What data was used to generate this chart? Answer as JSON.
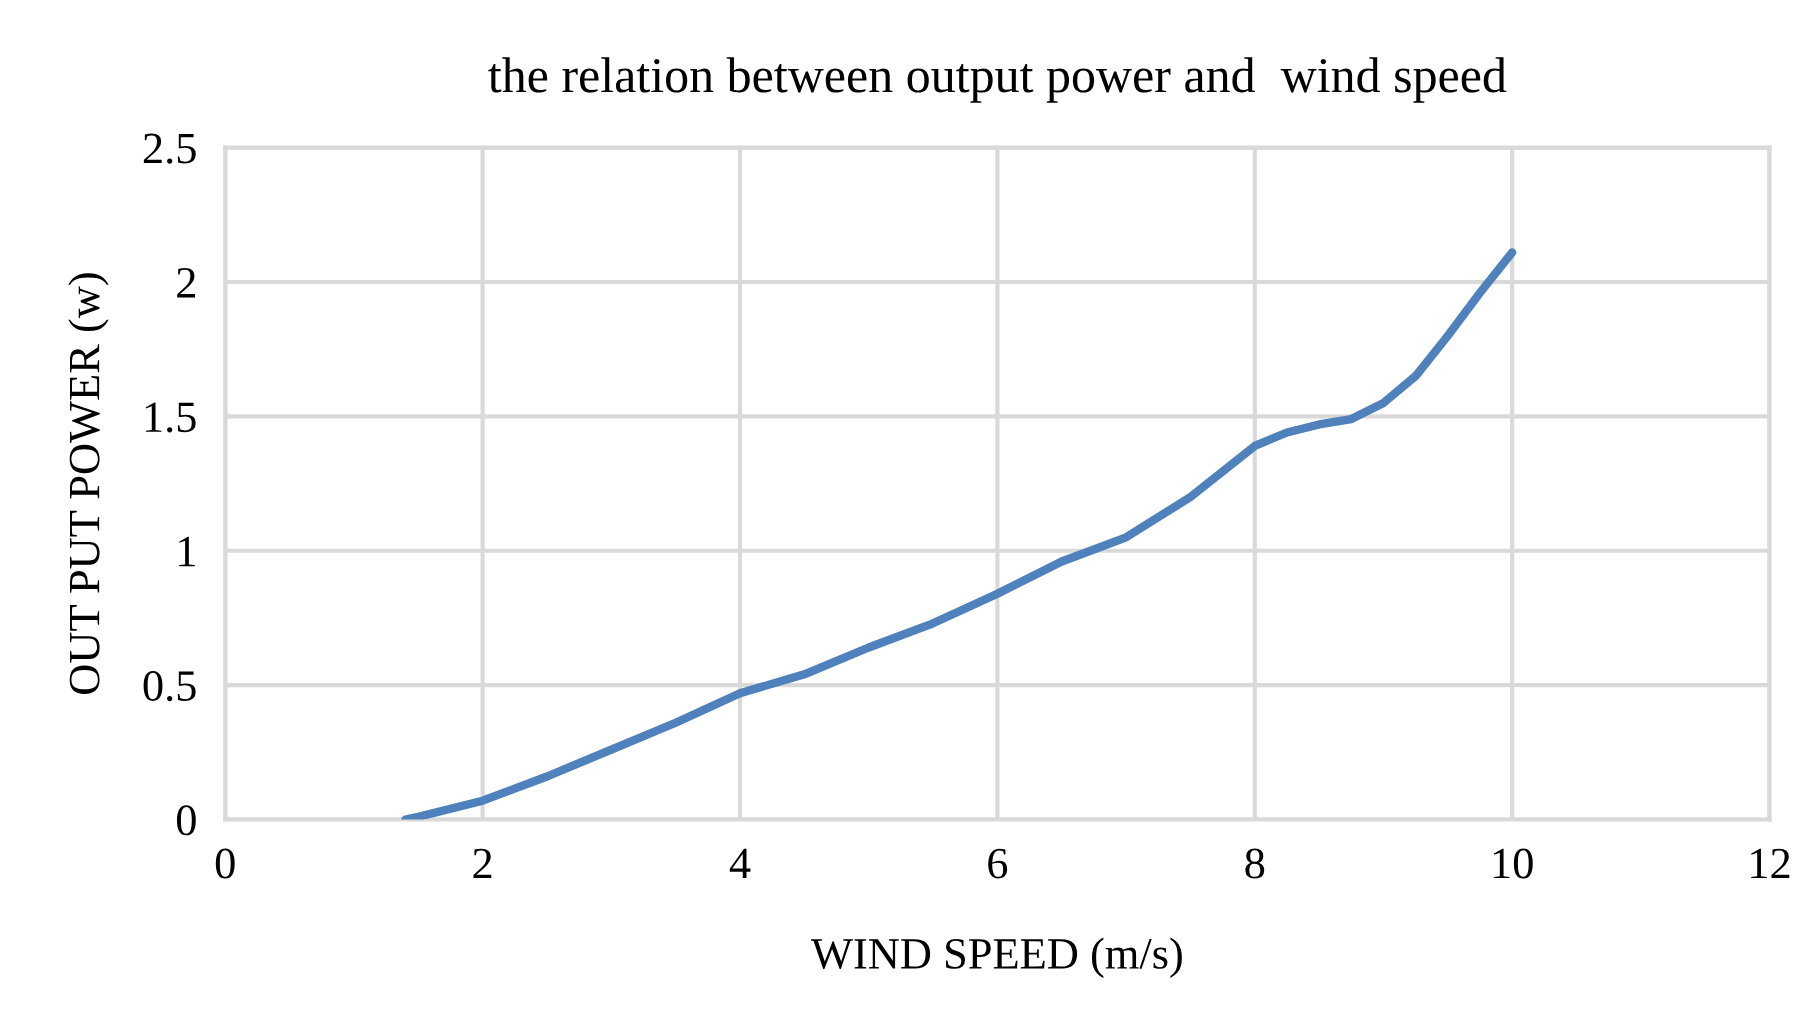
{
  "chart_data": {
    "type": "line",
    "title": "the relation between output power and  wind speed",
    "xlabel": "WIND SPEED (m/s)",
    "ylabel": "OUT PUT POWER (w)",
    "series": [
      {
        "color": "#4f81bd",
        "x": [
          1.4,
          1.5,
          2,
          2.5,
          3,
          3.5,
          4,
          4.5,
          5,
          5.5,
          6,
          6.5,
          7,
          7.5,
          8,
          8.25,
          8.5,
          8.75,
          9,
          9.25,
          9.5,
          9.75,
          10
        ],
        "values": [
          0,
          0.01,
          0.07,
          0.16,
          0.26,
          0.36,
          0.47,
          0.54,
          0.64,
          0.73,
          0.84,
          0.96,
          1.05,
          1.2,
          1.39,
          1.44,
          1.47,
          1.49,
          1.55,
          1.65,
          1.8,
          1.96,
          2.11
        ]
      }
    ],
    "xlim": [
      0,
      12
    ],
    "xticks": [
      0,
      2,
      4,
      6,
      8,
      10,
      12
    ],
    "ylim": [
      0,
      2.5
    ],
    "yticks": [
      0,
      0.5,
      1,
      1.5,
      2,
      2.5
    ],
    "grid": true,
    "marker": "none",
    "line_style": "solid"
  }
}
